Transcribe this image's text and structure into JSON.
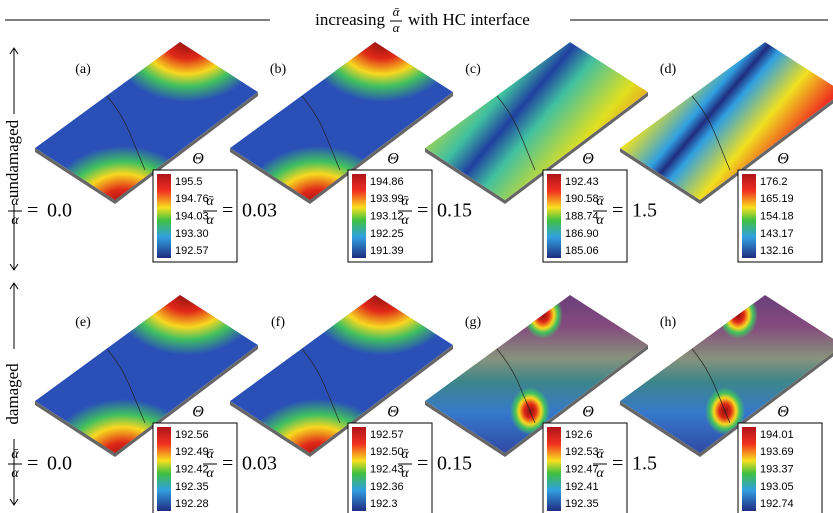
{
  "header": {
    "prefix": "increasing",
    "numerator": "ᾱ",
    "denominator": "α",
    "suffix": "with HC interface"
  },
  "rows": [
    {
      "label": "undamaged",
      "panels": [
        {
          "label": "(a)",
          "symbol": "Θ",
          "ratio": "0.0",
          "colorbar": [
            "195.5",
            "194.76",
            "194.03",
            "193.30",
            "192.57"
          ]
        },
        {
          "label": "(b)",
          "symbol": "Θ",
          "ratio": "0.03",
          "colorbar": [
            "194.86",
            "193.99",
            "193.12",
            "192.25",
            "191.39"
          ]
        },
        {
          "label": "(c)",
          "symbol": "Θ",
          "ratio": "0.15",
          "colorbar": [
            "192.43",
            "190.58",
            "188.74",
            "186.90",
            "185.06"
          ]
        },
        {
          "label": "(d)",
          "symbol": "Θ",
          "ratio": "1.5",
          "colorbar": [
            "176.2",
            "165.19",
            "154.18",
            "143.17",
            "132.16"
          ]
        }
      ]
    },
    {
      "label": "damaged",
      "panels": [
        {
          "label": "(e)",
          "symbol": "Θ",
          "ratio": "0.0",
          "colorbar": [
            "192.56",
            "192.49",
            "192.42",
            "192.35",
            "192.28"
          ]
        },
        {
          "label": "(f)",
          "symbol": "Θ",
          "ratio": "0.03",
          "colorbar": [
            "192.57",
            "192.50",
            "192.43",
            "192.36",
            "192.3"
          ]
        },
        {
          "label": "(g)",
          "symbol": "Θ",
          "ratio": "0.15",
          "colorbar": [
            "192.6",
            "192.53",
            "192.47",
            "192.41",
            "192.35"
          ]
        },
        {
          "label": "(h)",
          "symbol": "Θ",
          "ratio": "1.5",
          "colorbar": [
            "194.01",
            "193.69",
            "193.37",
            "193.05",
            "192.74"
          ]
        }
      ]
    }
  ]
}
